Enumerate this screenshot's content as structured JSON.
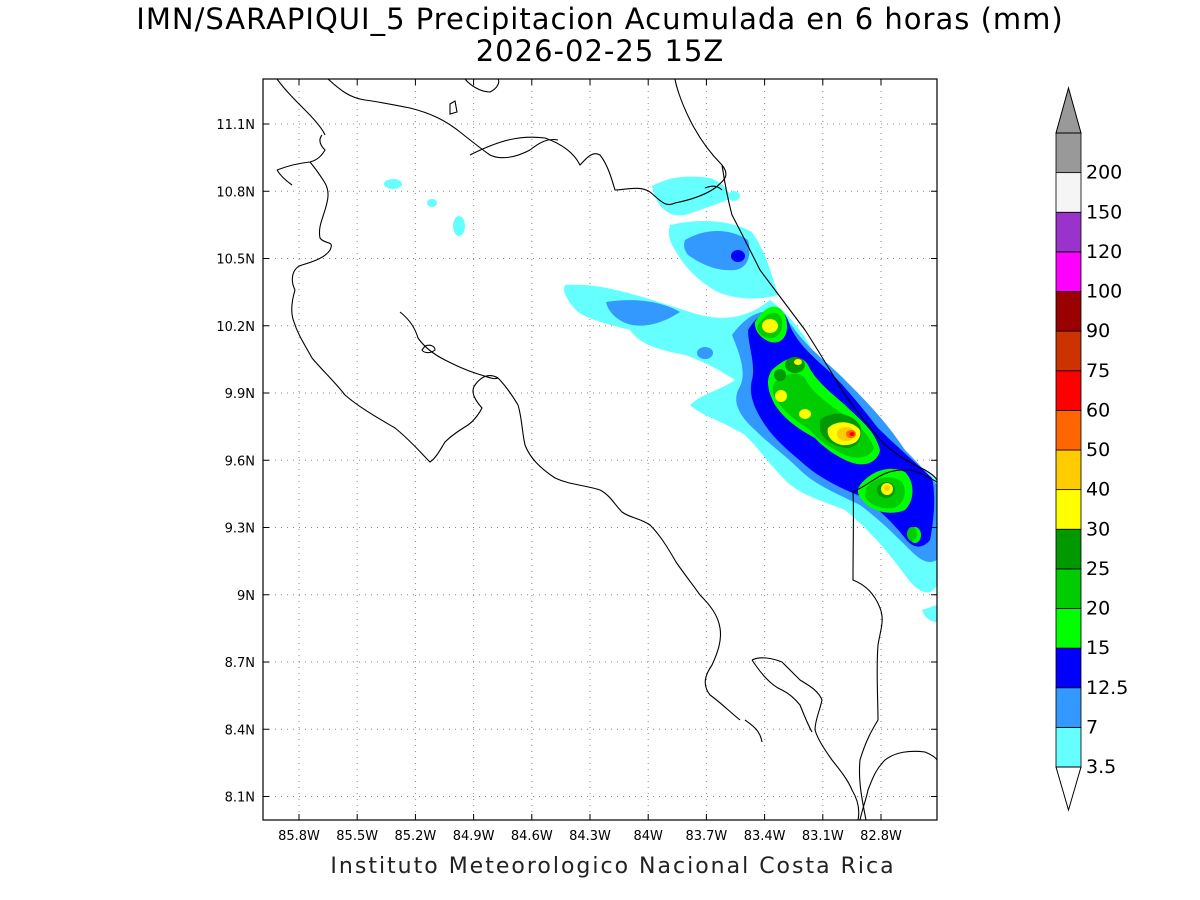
{
  "title": {
    "line1": "IMN/SARAPIQUI_5 Precipitacion Acumulada en 6 horas (mm)",
    "line2": "2026-02-25 15Z"
  },
  "credit": "Instituto Meteorologico Nacional Costa Rica",
  "map": {
    "lon_range": [
      -86.0,
      -82.65
    ],
    "lat_range": [
      8.0,
      11.3
    ],
    "lat_ticks": [
      "11.1N",
      "10.8N",
      "10.5N",
      "10.2N",
      "9.9N",
      "9.6N",
      "9.3N",
      "9N",
      "8.7N",
      "8.4N",
      "8.1N"
    ],
    "lon_ticks": [
      "85.8W",
      "85.5W",
      "85.2W",
      "84.9W",
      "84.6W",
      "84.3W",
      "84W",
      "83.7W",
      "83.4W",
      "83.1W",
      "82.8W"
    ],
    "grid": "dotted"
  },
  "colorbar": {
    "levels": [
      "3.5",
      "7",
      "12.5",
      "15",
      "20",
      "25",
      "30",
      "40",
      "50",
      "60",
      "75",
      "90",
      "100",
      "120",
      "150",
      "200"
    ],
    "colors": [
      "#66ffff",
      "#3399ff",
      "#0000ff",
      "#00ff00",
      "#00cc00",
      "#009900",
      "#ffff00",
      "#ffcc00",
      "#ff6600",
      "#ff0000",
      "#cc3300",
      "#990000",
      "#ff00ff",
      "#9933cc",
      "#f5f5f5",
      "#999999"
    ],
    "extend": "both"
  }
}
